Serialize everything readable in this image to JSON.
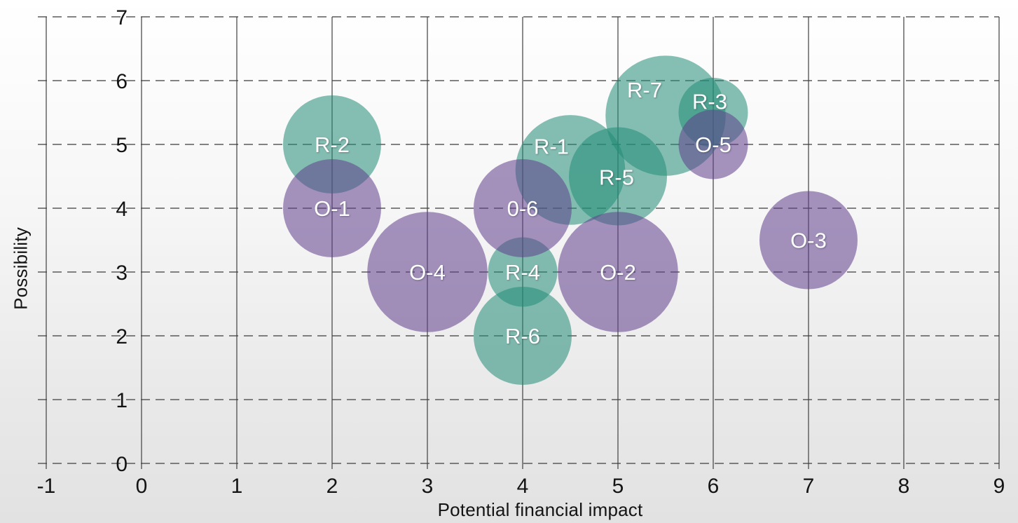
{
  "chart_data": {
    "type": "bubble",
    "title": "",
    "xlabel": "Potential financial impact",
    "ylabel": "Possibility",
    "xlim": [
      -1,
      9
    ],
    "ylim": [
      0,
      7
    ],
    "x_ticks": [
      "-1",
      "0",
      "1",
      "2",
      "3",
      "4",
      "5",
      "6",
      "7",
      "8",
      "9"
    ],
    "x_tick_values": [
      -1,
      0,
      1,
      2,
      3,
      4,
      5,
      6,
      7,
      8,
      9
    ],
    "y_ticks": [
      "0",
      "1",
      "2",
      "3",
      "4",
      "5",
      "6",
      "7"
    ],
    "y_tick_values": [
      0,
      1,
      2,
      3,
      4,
      5,
      6,
      7
    ],
    "grid": {
      "vertical": "solid",
      "horizontal": "dashed",
      "vertical_color": "#3f3f3f",
      "horizontal_color": "#5a5a5a"
    },
    "legend": "none",
    "series": [
      {
        "name": "R",
        "color": "rgba(35,140,118,0.55)",
        "points": [
          {
            "label": "R-1",
            "x": 4.5,
            "y": 4.6,
            "size": 2.5,
            "label_dx": -27,
            "label_dy": -34
          },
          {
            "label": "R-2",
            "x": 2,
            "y": 5,
            "size": 2,
            "label_dx": 0,
            "label_dy": 0
          },
          {
            "label": "R-3",
            "x": 6,
            "y": 5.5,
            "size": 1,
            "label_dx": -5,
            "label_dy": -16
          },
          {
            "label": "R-4",
            "x": 4,
            "y": 3,
            "size": 1,
            "label_dx": 0,
            "label_dy": 0
          },
          {
            "label": "R-5",
            "x": 5,
            "y": 4.5,
            "size": 2,
            "label_dx": -2,
            "label_dy": 1
          },
          {
            "label": "R-6",
            "x": 4,
            "y": 2,
            "size": 2,
            "label_dx": 0,
            "label_dy": 0
          },
          {
            "label": "R-7",
            "x": 5.5,
            "y": 5.45,
            "size": 3,
            "label_dx": -30,
            "label_dy": -37
          }
        ]
      },
      {
        "name": "O",
        "color": "rgba(95,62,140,0.55)",
        "points": [
          {
            "label": "O-1",
            "x": 2,
            "y": 4,
            "size": 2,
            "label_dx": 0,
            "label_dy": 0
          },
          {
            "label": "O-2",
            "x": 5,
            "y": 3,
            "size": 3,
            "label_dx": 0,
            "label_dy": 0
          },
          {
            "label": "O-3",
            "x": 7,
            "y": 3.5,
            "size": 2,
            "label_dx": 0,
            "label_dy": 0
          },
          {
            "label": "O-4",
            "x": 3,
            "y": 3,
            "size": 3,
            "label_dx": 0,
            "label_dy": 0
          },
          {
            "label": "O-5",
            "x": 6,
            "y": 5,
            "size": 1,
            "label_dx": 0,
            "label_dy": 0
          },
          {
            "label": "0-6",
            "x": 4,
            "y": 4,
            "size": 2,
            "label_dx": 0,
            "label_dy": 0
          }
        ]
      }
    ],
    "text_color": "#141414",
    "bubble_label_color": "#ffffff"
  }
}
